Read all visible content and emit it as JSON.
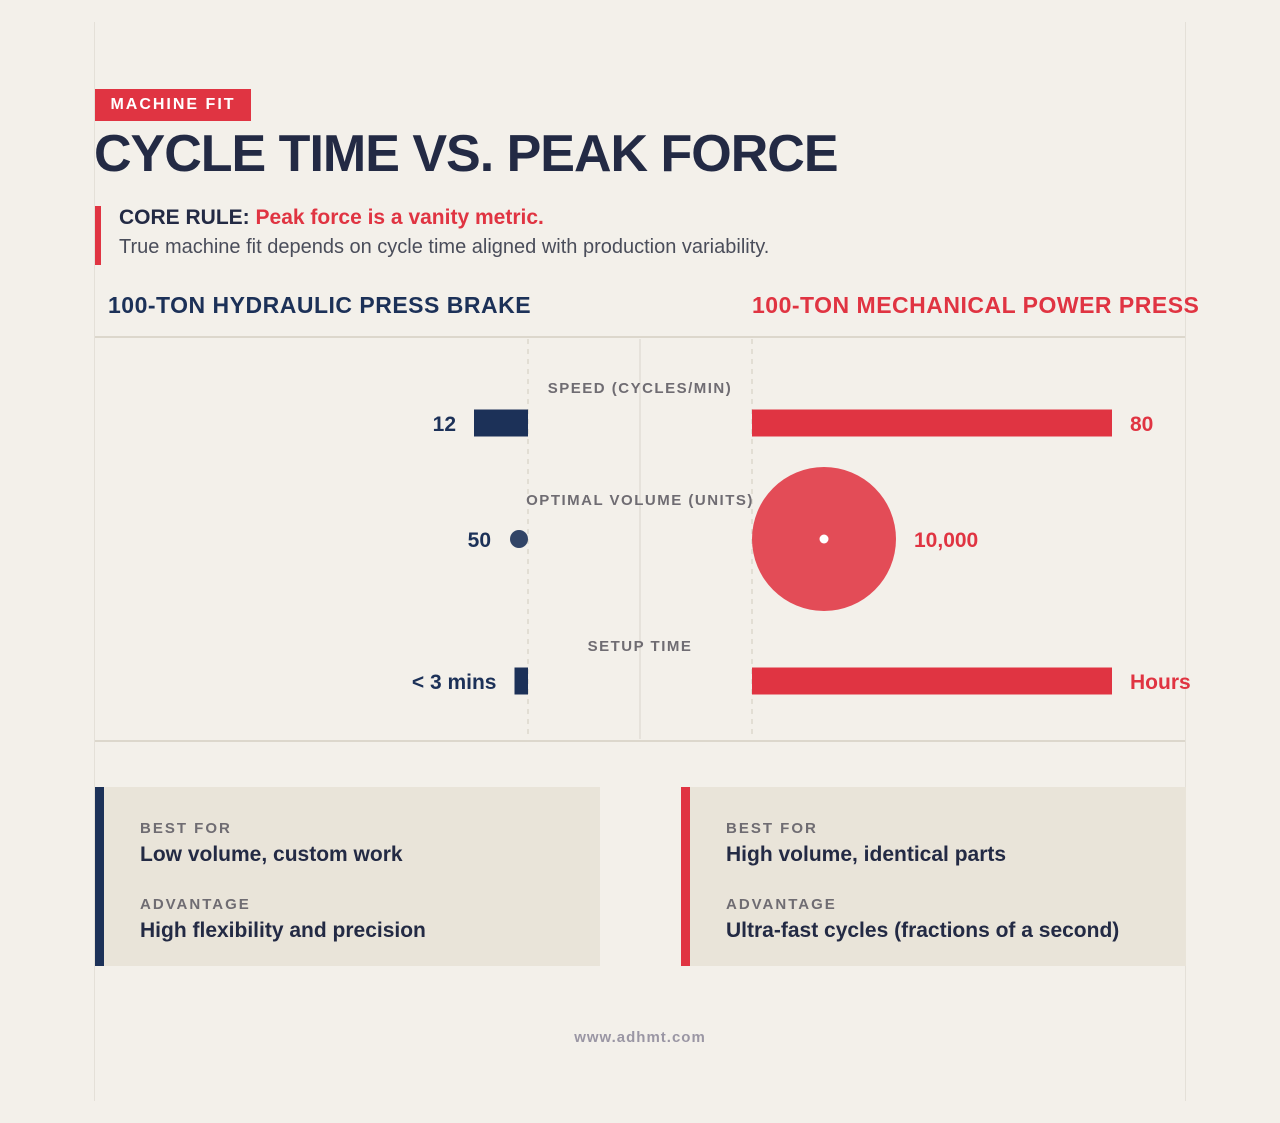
{
  "tag": "MACHINE FIT",
  "title": "CYCLE TIME VS. PEAK FORCE",
  "core_rule": {
    "prefix": "CORE RULE:",
    "emphasis": "Peak force is a vanity metric.",
    "body": "True machine fit depends on cycle time aligned with production variability."
  },
  "columns": {
    "left": "100-TON HYDRAULIC PRESS BRAKE",
    "right": "100-TON MECHANICAL POWER PRESS"
  },
  "colors": {
    "hydraulic": "#1c3158",
    "mechanical": "#e03442",
    "background": "#f3f0ea",
    "card": "#e9e4d9"
  },
  "chart_data": {
    "type": "bar",
    "series": [
      {
        "name": "100-TON HYDRAULIC PRESS BRAKE"
      },
      {
        "name": "100-TON MECHANICAL POWER PRESS"
      }
    ],
    "metrics": [
      {
        "label": "SPEED (CYCLES/MIN)",
        "encoding": "bar",
        "hydraulic": 12,
        "mechanical": 80,
        "hydraulic_label": "12",
        "mechanical_label": "80"
      },
      {
        "label": "OPTIMAL VOLUME (UNITS)",
        "encoding": "bubble",
        "hydraulic": 50,
        "mechanical": 10000,
        "hydraulic_label": "50",
        "mechanical_label": "10,000"
      },
      {
        "label": "SETUP TIME",
        "encoding": "bar",
        "hydraulic": 3,
        "mechanical": 180,
        "hydraulic_label": "< 3 mins",
        "mechanical_label": "Hours"
      }
    ]
  },
  "cards": {
    "left": {
      "best_for_label": "BEST FOR",
      "best_for": "Low volume, custom work",
      "advantage_label": "ADVANTAGE",
      "advantage": "High flexibility and precision"
    },
    "right": {
      "best_for_label": "BEST FOR",
      "best_for": "High volume, identical parts",
      "advantage_label": "ADVANTAGE",
      "advantage": "Ultra-fast cycles (fractions of a second)"
    }
  },
  "footer": "www.adhmt.com"
}
